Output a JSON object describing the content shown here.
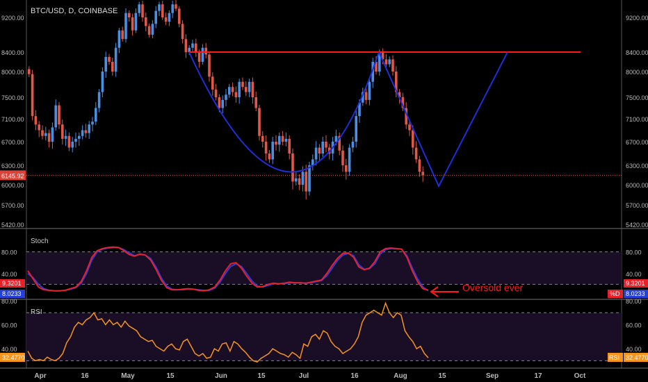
{
  "chart_data": {
    "type": "candlestick",
    "title": "BTC/USD, D, COINBASE",
    "price_panel": {
      "ylim": [
        5300,
        9550
      ],
      "y_ticks": [
        "9200.00",
        "8400.00",
        "8000.00",
        "7500.00",
        "7100.00",
        "6700.00",
        "6300.00",
        "6000.00",
        "5700.00",
        "5420.00"
      ],
      "y_tick_values": [
        9200,
        8400,
        8000,
        7500,
        7100,
        6700,
        6300,
        6000,
        5700,
        5420
      ],
      "last_price_label": "6145.92",
      "last_price": 6145.92,
      "resistance_level": 8400,
      "candles_close": [
        7950,
        7150,
        7000,
        6900,
        6800,
        6850,
        6700,
        6950,
        7350,
        7000,
        6750,
        6800,
        6600,
        6700,
        6750,
        6800,
        6900,
        6850,
        7000,
        7050,
        7300,
        7600,
        8000,
        8300,
        8200,
        8000,
        8500,
        8900,
        8700,
        9300,
        9200,
        8900,
        9300,
        9500,
        9200,
        9000,
        8800,
        9050,
        9350,
        9500,
        9200,
        9100,
        9300,
        9500,
        9400,
        9050,
        8700,
        8400,
        8500,
        8600,
        8400,
        8200,
        8500,
        8350,
        7900,
        7650,
        7500,
        7300,
        7450,
        7550,
        7700,
        7600,
        7500,
        7800,
        7700,
        7600,
        7800,
        7500,
        7300,
        6800,
        6700,
        6500,
        6400,
        6700,
        6650,
        6800,
        6700,
        6750,
        6500,
        6050,
        6100,
        6000,
        6200,
        5900,
        6300,
        6400,
        6600,
        6500,
        6700,
        6600,
        6500,
        6700,
        6800,
        6550,
        6300,
        6200,
        6600,
        6700,
        7150,
        7400,
        7600,
        7450,
        7800,
        8200,
        8000,
        8400,
        8250,
        8150,
        8250,
        8000,
        7600,
        7500,
        7300,
        7000,
        6900,
        6600,
        6400,
        6200,
        6145.92
      ],
      "cup_and_handle_projection": true
    },
    "stoch_panel": {
      "label": "Stoch",
      "ylim": [
        0,
        100
      ],
      "y_ticks": [
        "80.00",
        "40.00"
      ],
      "y_tick_values": [
        80,
        40
      ],
      "k_label": "9.3201",
      "d_label": "8.0233",
      "d_tag": "%D",
      "k_color": "#e8202a",
      "d_color": "#2540d8",
      "k_values": [
        45,
        30,
        15,
        10,
        9,
        8,
        8,
        9,
        12,
        15,
        25,
        45,
        70,
        82,
        86,
        88,
        89,
        88,
        82,
        75,
        72,
        76,
        74,
        65,
        48,
        28,
        14,
        10,
        10,
        11,
        12,
        11,
        9,
        8,
        10,
        15,
        28,
        45,
        58,
        60,
        50,
        35,
        22,
        15,
        16,
        20,
        22,
        21,
        22,
        24,
        23,
        23,
        22,
        24,
        26,
        28,
        40,
        55,
        68,
        77,
        78,
        70,
        52,
        47,
        50,
        62,
        80,
        86,
        87,
        86,
        85,
        70,
        45,
        25,
        12,
        9.32
      ],
      "d_values": [
        40,
        32,
        20,
        12,
        9,
        8,
        8,
        9,
        11,
        14,
        22,
        40,
        65,
        80,
        85,
        87,
        88,
        88,
        84,
        78,
        73,
        75,
        74,
        68,
        52,
        32,
        17,
        11,
        10,
        10,
        11,
        11,
        10,
        9,
        9,
        13,
        24,
        40,
        53,
        58,
        53,
        40,
        26,
        17,
        15,
        18,
        21,
        21,
        21,
        23,
        23,
        23,
        22,
        23,
        25,
        27,
        36,
        50,
        64,
        74,
        77,
        73,
        56,
        48,
        49,
        58,
        76,
        84,
        86,
        86,
        85,
        73,
        50,
        30,
        15,
        8.02
      ],
      "annotation": "Oversold ever"
    },
    "rsi_panel": {
      "label": "RSI",
      "ylim": [
        25,
        80
      ],
      "y_ticks": [
        "80.00",
        "60.00",
        "40.00"
      ],
      "y_tick_values": [
        80,
        60,
        40
      ],
      "value_label": "32.4770",
      "value_tag": "RSI",
      "color": "#f7941d",
      "values": [
        38,
        32,
        30,
        31,
        30,
        33,
        31,
        30,
        32,
        36,
        45,
        50,
        58,
        62,
        60,
        64,
        66,
        70,
        64,
        65,
        60,
        64,
        60,
        62,
        58,
        63,
        59,
        57,
        55,
        50,
        48,
        46,
        47,
        42,
        40,
        38,
        42,
        44,
        40,
        39,
        46,
        48,
        42,
        36,
        34,
        36,
        32,
        33,
        40,
        38,
        44,
        45,
        38,
        46,
        44,
        40,
        37,
        33,
        30,
        29,
        32,
        34,
        36,
        40,
        38,
        36,
        35,
        33,
        37,
        35,
        32,
        44,
        42,
        50,
        52,
        48,
        55,
        53,
        46,
        42,
        40,
        36,
        38,
        40,
        44,
        50,
        62,
        68,
        70,
        72,
        70,
        68,
        78,
        70,
        66,
        70,
        68,
        55,
        50,
        46,
        40,
        42,
        36,
        32.48
      ]
    },
    "x_ticks": [
      "Apr",
      "16",
      "May",
      "15",
      "Jun",
      "15",
      "Jul",
      "16",
      "Aug",
      "15",
      "Sep",
      "17",
      "Oct"
    ]
  },
  "colors": {
    "background": "#000000",
    "up_candle": "#4a90e2",
    "down_candle": "#e05848",
    "resistance_line": "#ff1a1a",
    "projection_line": "#1e2ed8",
    "panel_fill": "#1a0d26",
    "grid_dash": "#888888",
    "annotation": "#ff1a1a"
  }
}
